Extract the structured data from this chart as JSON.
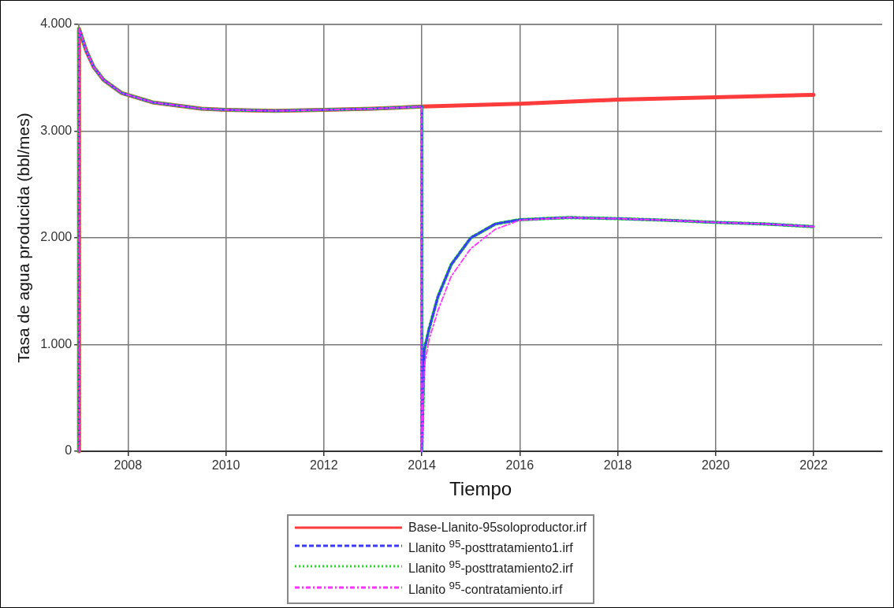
{
  "chart_data": {
    "type": "line",
    "xlabel": "Tiempo",
    "ylabel": "Tasa de agua producida (bbl/mes)",
    "xlim": [
      2007,
      2023.4
    ],
    "xticks": [
      2008,
      2010,
      2012,
      2014,
      2016,
      2018,
      2020,
      2022
    ],
    "ylim": [
      0,
      4000
    ],
    "yticks": [
      0,
      {
        "value": 1000,
        "label": "1.000"
      },
      {
        "value": 2000,
        "label": "2.000"
      },
      {
        "value": 3000,
        "label": "3.000"
      },
      {
        "value": 4000,
        "label": "4.000"
      }
    ],
    "grid": true,
    "legend": "bottom",
    "marker": "none",
    "series": [
      {
        "name": "Base-Llanito-95soloproductor.irf",
        "color": "#ff3b3b",
        "line_style": "solid",
        "x": [
          2007,
          2007,
          2007.15,
          2007.3,
          2007.5,
          2007.87,
          2008.5,
          2009.5,
          2010,
          2011,
          2012,
          2013,
          2014,
          2016,
          2018,
          2020,
          2022
        ],
        "values": [
          0,
          3960,
          3750,
          3600,
          3480,
          3357,
          3270,
          3210,
          3200,
          3190,
          3200,
          3210,
          3230,
          3256,
          3295,
          3318,
          3340
        ]
      },
      {
        "name": "Llanito $^{95}$-posttratamiento1.irf",
        "color": "#3b3bff",
        "line_style": "dashed",
        "x": [
          2007,
          2007,
          2007.15,
          2007.3,
          2007.5,
          2007.87,
          2008.5,
          2009.5,
          2010,
          2011,
          2012,
          2013,
          2014,
          2014,
          2014.05,
          2014.15,
          2014.33,
          2014.6,
          2015,
          2015.5,
          2016,
          2017,
          2018,
          2019,
          2020,
          2021,
          2022
        ],
        "values": [
          0,
          3960,
          3750,
          3600,
          3480,
          3357,
          3270,
          3210,
          3200,
          3190,
          3200,
          3210,
          3230,
          0,
          950,
          1150,
          1450,
          1750,
          2000,
          2130,
          2170,
          2190,
          2180,
          2165,
          2145,
          2130,
          2105
        ]
      },
      {
        "name": "Llanito $^{95}$-posttratamiento2.irf",
        "color": "#22dd22",
        "line_style": "dotted",
        "x": [
          2007,
          2007,
          2007.15,
          2007.3,
          2007.5,
          2007.87,
          2008.5,
          2009.5,
          2010,
          2011,
          2012,
          2013,
          2014,
          2014,
          2014.05,
          2014.15,
          2014.33,
          2014.6,
          2015,
          2015.5,
          2016,
          2017,
          2018,
          2019,
          2020,
          2021,
          2022
        ],
        "values": [
          0,
          3960,
          3750,
          3600,
          3480,
          3357,
          3270,
          3210,
          3200,
          3190,
          3200,
          3210,
          3230,
          0,
          950,
          1150,
          1450,
          1750,
          2000,
          2130,
          2170,
          2190,
          2180,
          2165,
          2145,
          2130,
          2105
        ]
      },
      {
        "name": "Llanito $^{95}$-contratamiento.irf",
        "color": "#ff33ff",
        "line_style": "dashdot",
        "x": [
          2007,
          2007,
          2007.15,
          2007.3,
          2007.5,
          2007.87,
          2008.5,
          2009.5,
          2010,
          2011,
          2012,
          2013,
          2014,
          2014,
          2014.05,
          2014.15,
          2014.33,
          2014.6,
          2015,
          2015.5,
          2016,
          2017,
          2018,
          2019,
          2020,
          2021,
          2022
        ],
        "values": [
          0,
          3960,
          3750,
          3600,
          3480,
          3357,
          3270,
          3210,
          3200,
          3190,
          3200,
          3210,
          3230,
          0,
          800,
          1050,
          1320,
          1640,
          1900,
          2080,
          2165,
          2190,
          2180,
          2165,
          2145,
          2130,
          2105
        ]
      }
    ]
  }
}
